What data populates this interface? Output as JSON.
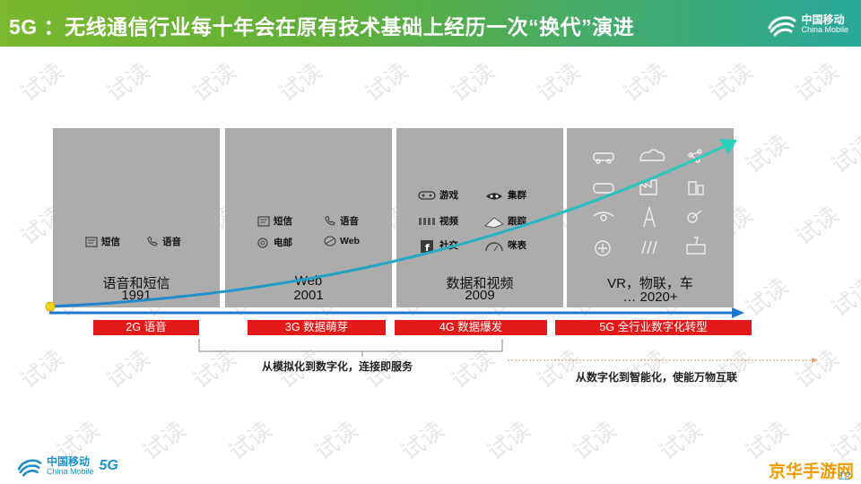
{
  "header": {
    "title": "5G ：无线通信行业每十年会在原有技术基础上经历一次“换代”演进",
    "brand_cn": "中国移动",
    "brand_en": "China Mobile",
    "bg_start": "#7ab82e",
    "bg_end": "#2aa89a"
  },
  "watermark": "试读",
  "panels": [
    {
      "caption": "语音和短信",
      "year": "1991",
      "features": [
        {
          "icon": "sms-icon",
          "label": "短信"
        },
        {
          "icon": "phone-icon",
          "label": "语音"
        }
      ]
    },
    {
      "caption": "Web",
      "year": "2001",
      "features": [
        {
          "icon": "sms-icon",
          "label": "短信"
        },
        {
          "icon": "phone-icon",
          "label": "语音"
        },
        {
          "icon": "email-icon",
          "label": "电邮"
        },
        {
          "icon": "web-icon",
          "label": "Web"
        }
      ]
    },
    {
      "caption": "数据和视频",
      "year": "2009",
      "features": [
        {
          "icon": "gamepad-icon",
          "label": "游戏"
        },
        {
          "icon": "cluster-icon",
          "label": "集群"
        },
        {
          "icon": "video-icon",
          "label": "视频"
        },
        {
          "icon": "tracking-icon",
          "label": "跟踪"
        },
        {
          "icon": "social-icon",
          "label": "社交"
        },
        {
          "icon": "meter-icon",
          "label": "咪表"
        }
      ]
    },
    {
      "caption": "VR，物联，车",
      "year": "… 2020+",
      "features": []
    }
  ],
  "generations": [
    {
      "label": "2G  语音"
    },
    {
      "label": "3G  数据萌芽"
    },
    {
      "label": "4G 数据爆发"
    },
    {
      "label": "5G 全行业数字化转型"
    }
  ],
  "captions": {
    "left": "从模拟化到数字化，连接即服务",
    "right": "从数字化到智能化，使能万物互联"
  },
  "footer": {
    "brand_cn": "中国移动",
    "brand_en": "China Mobile",
    "badge": "5G",
    "site_mark": "京华手游网",
    "page_number": "12"
  },
  "colors": {
    "panel": "#acacac",
    "gen_bar": "#e31a1a",
    "timeline": "#1e78c8",
    "growth_curve": "#29c6b4",
    "dashed_arrow": "#f0a060"
  }
}
